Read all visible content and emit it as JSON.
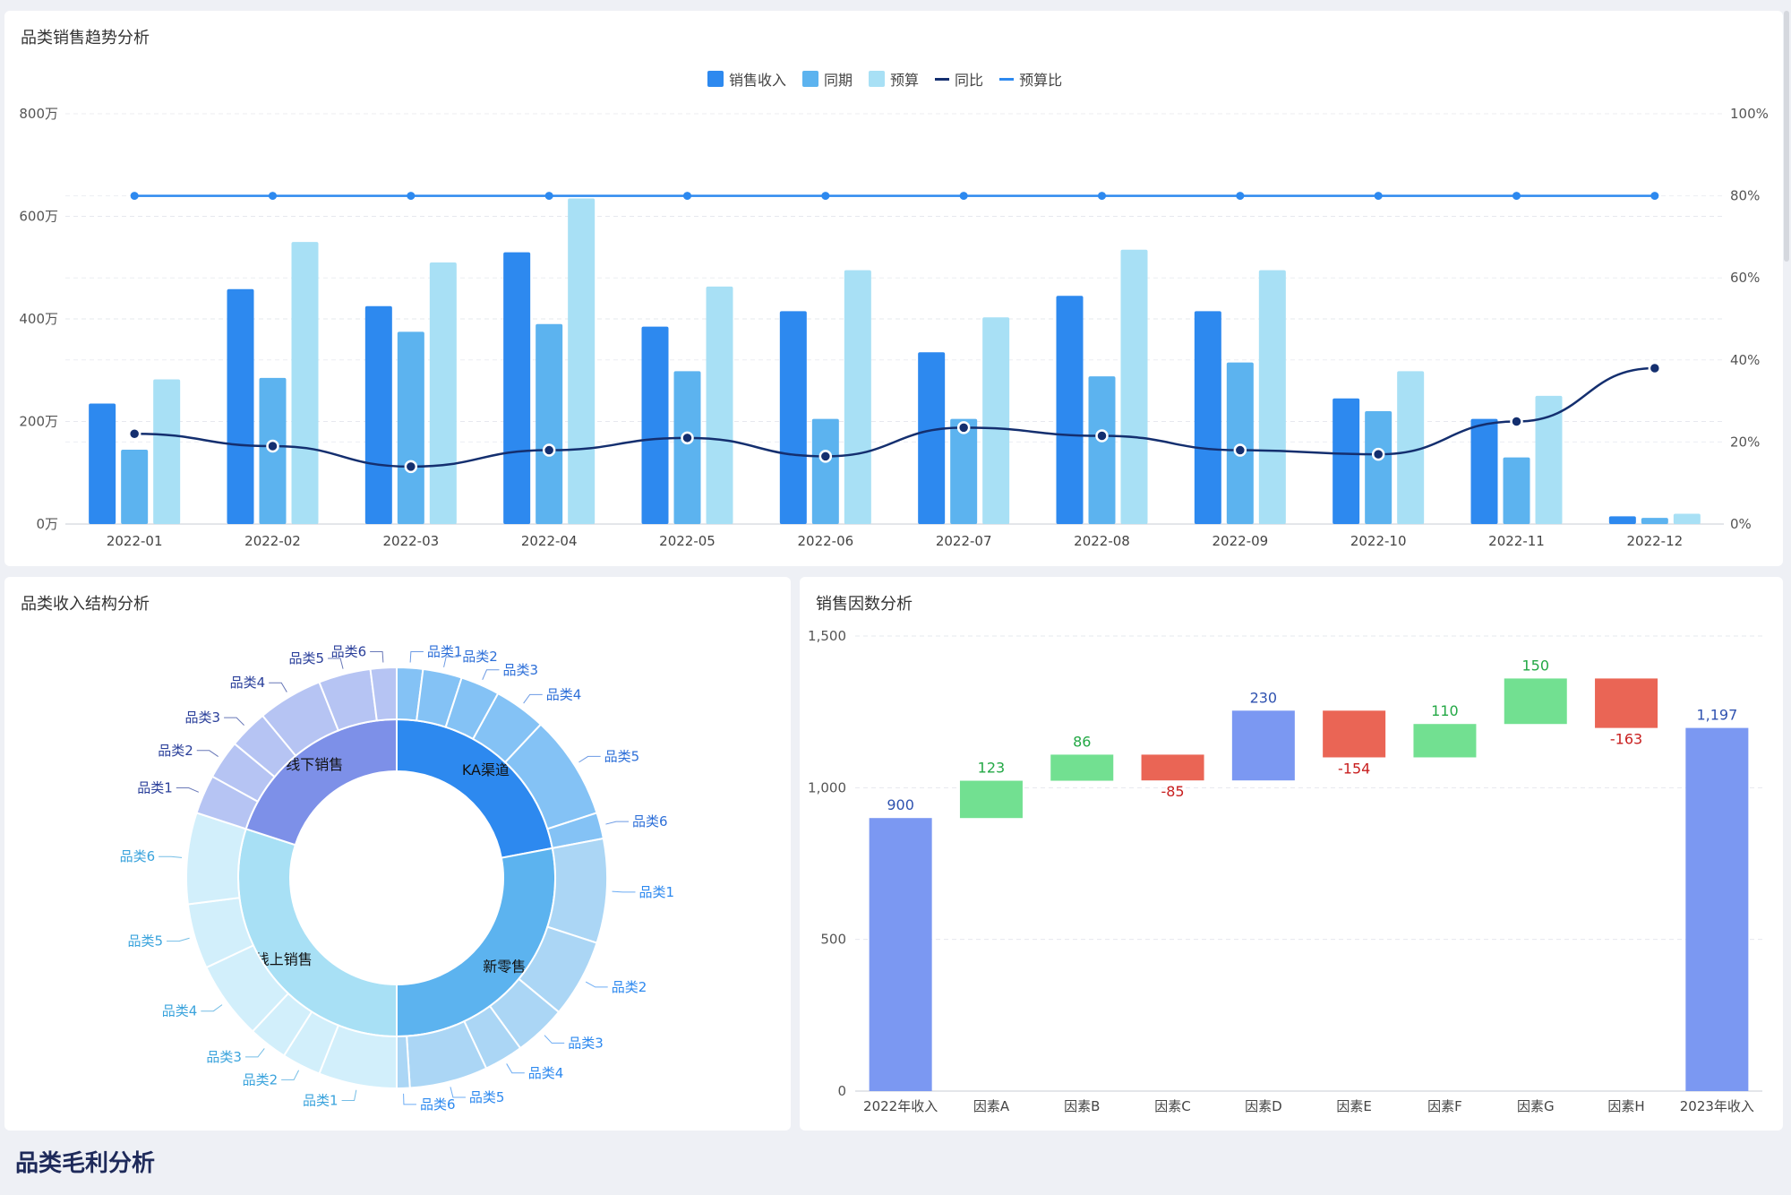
{
  "trend": {
    "title": "品类销售趋势分析",
    "legend": [
      {
        "label": "销售收入",
        "kind": "bar",
        "color": "#2d89ef"
      },
      {
        "label": "同期",
        "kind": "bar",
        "color": "#5cb3ef"
      },
      {
        "label": "预算",
        "kind": "bar",
        "color": "#a8e0f5"
      },
      {
        "label": "同比",
        "kind": "line",
        "color": "#142f6f"
      },
      {
        "label": "预算比",
        "kind": "line",
        "color": "#2d89ef"
      }
    ]
  },
  "sunburst": {
    "title": "品类收入结构分析"
  },
  "waterfall": {
    "title": "销售因数分析"
  },
  "section": {
    "title": "品类毛利分析"
  },
  "chart_data": [
    {
      "type": "bar",
      "title": "品类销售趋势分析",
      "categories": [
        "2022-01",
        "2022-02",
        "2022-03",
        "2022-04",
        "2022-05",
        "2022-06",
        "2022-07",
        "2022-08",
        "2022-09",
        "2022-10",
        "2022-11",
        "2022-12"
      ],
      "series": [
        {
          "name": "销售收入",
          "values": [
            235,
            458,
            425,
            530,
            385,
            415,
            335,
            445,
            415,
            245,
            205,
            15
          ],
          "color": "#2d89ef",
          "axis": "left"
        },
        {
          "name": "同期",
          "values": [
            145,
            285,
            375,
            390,
            298,
            205,
            205,
            288,
            315,
            220,
            130,
            12
          ],
          "color": "#5cb3ef",
          "axis": "left"
        },
        {
          "name": "预算",
          "values": [
            282,
            550,
            510,
            635,
            463,
            495,
            403,
            535,
            495,
            298,
            250,
            20
          ],
          "color": "#a8e0f5",
          "axis": "left"
        },
        {
          "name": "同比",
          "values": [
            22,
            19,
            14,
            18,
            21,
            16.5,
            23.5,
            21.5,
            18,
            17,
            25,
            38
          ],
          "color": "#142f6f",
          "axis": "right",
          "kind": "line"
        },
        {
          "name": "预算比",
          "values": [
            80,
            80,
            80,
            80,
            80,
            80,
            80,
            80,
            80,
            80,
            80,
            80
          ],
          "color": "#2d89ef",
          "axis": "right",
          "kind": "line"
        }
      ],
      "y_left": {
        "ticks": [
          "800万",
          "600万",
          "400万",
          "200万",
          "0万"
        ],
        "tick_values": [
          800,
          600,
          400,
          200,
          0
        ],
        "ylim": [
          0,
          800
        ]
      },
      "y_right": {
        "ticks": [
          "100%",
          "80%",
          "60%",
          "40%",
          "20%",
          "0%"
        ],
        "tick_values": [
          100,
          80,
          60,
          40,
          20,
          0
        ],
        "ylim": [
          0,
          100
        ]
      },
      "grid": true,
      "legend_position": "top-center"
    },
    {
      "type": "sunburst",
      "title": "品类收入结构分析",
      "inner": [
        {
          "name": "KA渠道",
          "value": 22,
          "color": "#2d89ef",
          "label_color": "#111"
        },
        {
          "name": "新零售",
          "value": 28,
          "color": "#5cb3ef",
          "label_color": "#111"
        },
        {
          "name": "线上销售",
          "value": 30,
          "color": "#a8e0f5",
          "label_color": "#111"
        },
        {
          "name": "线下销售",
          "value": 20,
          "color": "#7d90e8",
          "label_color": "#111"
        }
      ],
      "outer": [
        {
          "name": "品类1",
          "value": 2,
          "parent": "KA渠道",
          "color": "#84c2f5",
          "label_color": "#2d6fd8"
        },
        {
          "name": "品类2",
          "value": 3,
          "parent": "KA渠道",
          "color": "#84c2f5",
          "label_color": "#2d6fd8"
        },
        {
          "name": "品类3",
          "value": 3,
          "parent": "KA渠道",
          "color": "#84c2f5",
          "label_color": "#2d6fd8"
        },
        {
          "name": "品类4",
          "value": 4,
          "parent": "KA渠道",
          "color": "#84c2f5",
          "label_color": "#2d6fd8"
        },
        {
          "name": "品类5",
          "value": 8,
          "parent": "KA渠道",
          "color": "#84c2f5",
          "label_color": "#2d6fd8"
        },
        {
          "name": "品类6",
          "value": 2,
          "parent": "KA渠道",
          "color": "#84c2f5",
          "label_color": "#2d6fd8"
        },
        {
          "name": "品类1",
          "value": 8,
          "parent": "新零售",
          "color": "#abd6f5",
          "label_color": "#2d89ef"
        },
        {
          "name": "品类2",
          "value": 6,
          "parent": "新零售",
          "color": "#abd6f5",
          "label_color": "#2d89ef"
        },
        {
          "name": "品类3",
          "value": 4,
          "parent": "新零售",
          "color": "#abd6f5",
          "label_color": "#2d89ef"
        },
        {
          "name": "品类4",
          "value": 3,
          "parent": "新零售",
          "color": "#abd6f5",
          "label_color": "#2d89ef"
        },
        {
          "name": "品类5",
          "value": 6,
          "parent": "新零售",
          "color": "#abd6f5",
          "label_color": "#2d89ef"
        },
        {
          "name": "品类6",
          "value": 1,
          "parent": "新零售",
          "color": "#abd6f5",
          "label_color": "#2d89ef"
        },
        {
          "name": "品类1",
          "value": 6,
          "parent": "线上销售",
          "color": "#d2effb",
          "label_color": "#3aa3dc"
        },
        {
          "name": "品类2",
          "value": 3,
          "parent": "线上销售",
          "color": "#d2effb",
          "label_color": "#3aa3dc"
        },
        {
          "name": "品类3",
          "value": 3,
          "parent": "线上销售",
          "color": "#d2effb",
          "label_color": "#3aa3dc"
        },
        {
          "name": "品类4",
          "value": 6,
          "parent": "线上销售",
          "color": "#d2effb",
          "label_color": "#3aa3dc"
        },
        {
          "name": "品类5",
          "value": 5,
          "parent": "线上销售",
          "color": "#d2effb",
          "label_color": "#3aa3dc"
        },
        {
          "name": "品类6",
          "value": 7,
          "parent": "线上销售",
          "color": "#d2effb",
          "label_color": "#3aa3dc"
        },
        {
          "name": "品类1",
          "value": 3,
          "parent": "线下销售",
          "color": "#b6c4f3",
          "label_color": "#2a3f9a"
        },
        {
          "name": "品类2",
          "value": 3,
          "parent": "线下销售",
          "color": "#b6c4f3",
          "label_color": "#2a3f9a"
        },
        {
          "name": "品类3",
          "value": 3,
          "parent": "线下销售",
          "color": "#b6c4f3",
          "label_color": "#2a3f9a"
        },
        {
          "name": "品类4",
          "value": 5,
          "parent": "线下销售",
          "color": "#b6c4f3",
          "label_color": "#2a3f9a"
        },
        {
          "name": "品类5",
          "value": 4,
          "parent": "线下销售",
          "color": "#b6c4f3",
          "label_color": "#2a3f9a"
        },
        {
          "name": "品类6",
          "value": 2,
          "parent": "线下销售",
          "color": "#b6c4f3",
          "label_color": "#2a3f9a"
        }
      ]
    },
    {
      "type": "waterfall",
      "title": "销售因数分析",
      "categories": [
        "2022年收入",
        "因素A",
        "因素B",
        "因素C",
        "因素D",
        "因素E",
        "因素F",
        "因素G",
        "因素H",
        "2023年收入"
      ],
      "values": [
        900,
        123,
        86,
        -85,
        230,
        -154,
        110,
        150,
        -163,
        1197
      ],
      "labels": [
        "900",
        "123",
        "86",
        "-85",
        "230",
        "-154",
        "110",
        "150",
        "-163",
        "1,197"
      ],
      "kinds": [
        "total",
        "up",
        "up",
        "down",
        "up",
        "down",
        "up",
        "up",
        "down",
        "total"
      ],
      "colors": {
        "total": "#7b98f2",
        "up": "#72e091",
        "down": "#ea6555",
        "mid": "#7b98f2"
      },
      "label_colors": {
        "total": "#2f52b0",
        "up": "#23a845",
        "down": "#c81e1e"
      },
      "y_ticks": [
        "1,500",
        "1,000",
        "500",
        "0"
      ],
      "y_tick_values": [
        1500,
        1000,
        500,
        0
      ],
      "ylim": [
        0,
        1500
      ],
      "grid": true
    }
  ]
}
